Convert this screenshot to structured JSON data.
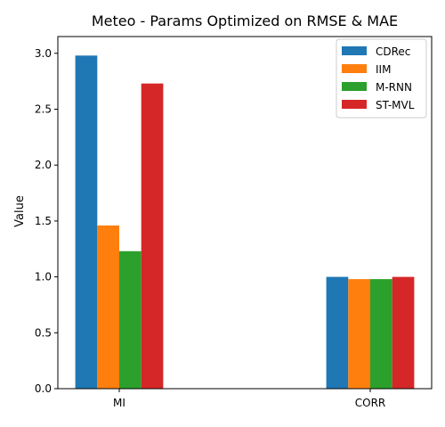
{
  "chart_data": {
    "type": "bar",
    "title": "Meteo - Params Optimized on RMSE & MAE",
    "xlabel": "",
    "ylabel": "Value",
    "categories": [
      "MI",
      "CORR"
    ],
    "ylim": [
      0,
      3.15
    ],
    "yticks": [
      "0.0",
      "0.5",
      "1.0",
      "1.5",
      "2.0",
      "2.5",
      "3.0"
    ],
    "grid": false,
    "legend_position": "top-right",
    "series": [
      {
        "name": "CDRec",
        "color": "#1f77b4",
        "values": [
          2.98,
          1.0
        ]
      },
      {
        "name": "IIM",
        "color": "#ff7f0e",
        "values": [
          1.46,
          0.98
        ]
      },
      {
        "name": "M-RNN",
        "color": "#2ca02c",
        "values": [
          1.23,
          0.98
        ]
      },
      {
        "name": "ST-MVL",
        "color": "#d62728",
        "values": [
          2.73,
          1.0
        ]
      }
    ]
  }
}
